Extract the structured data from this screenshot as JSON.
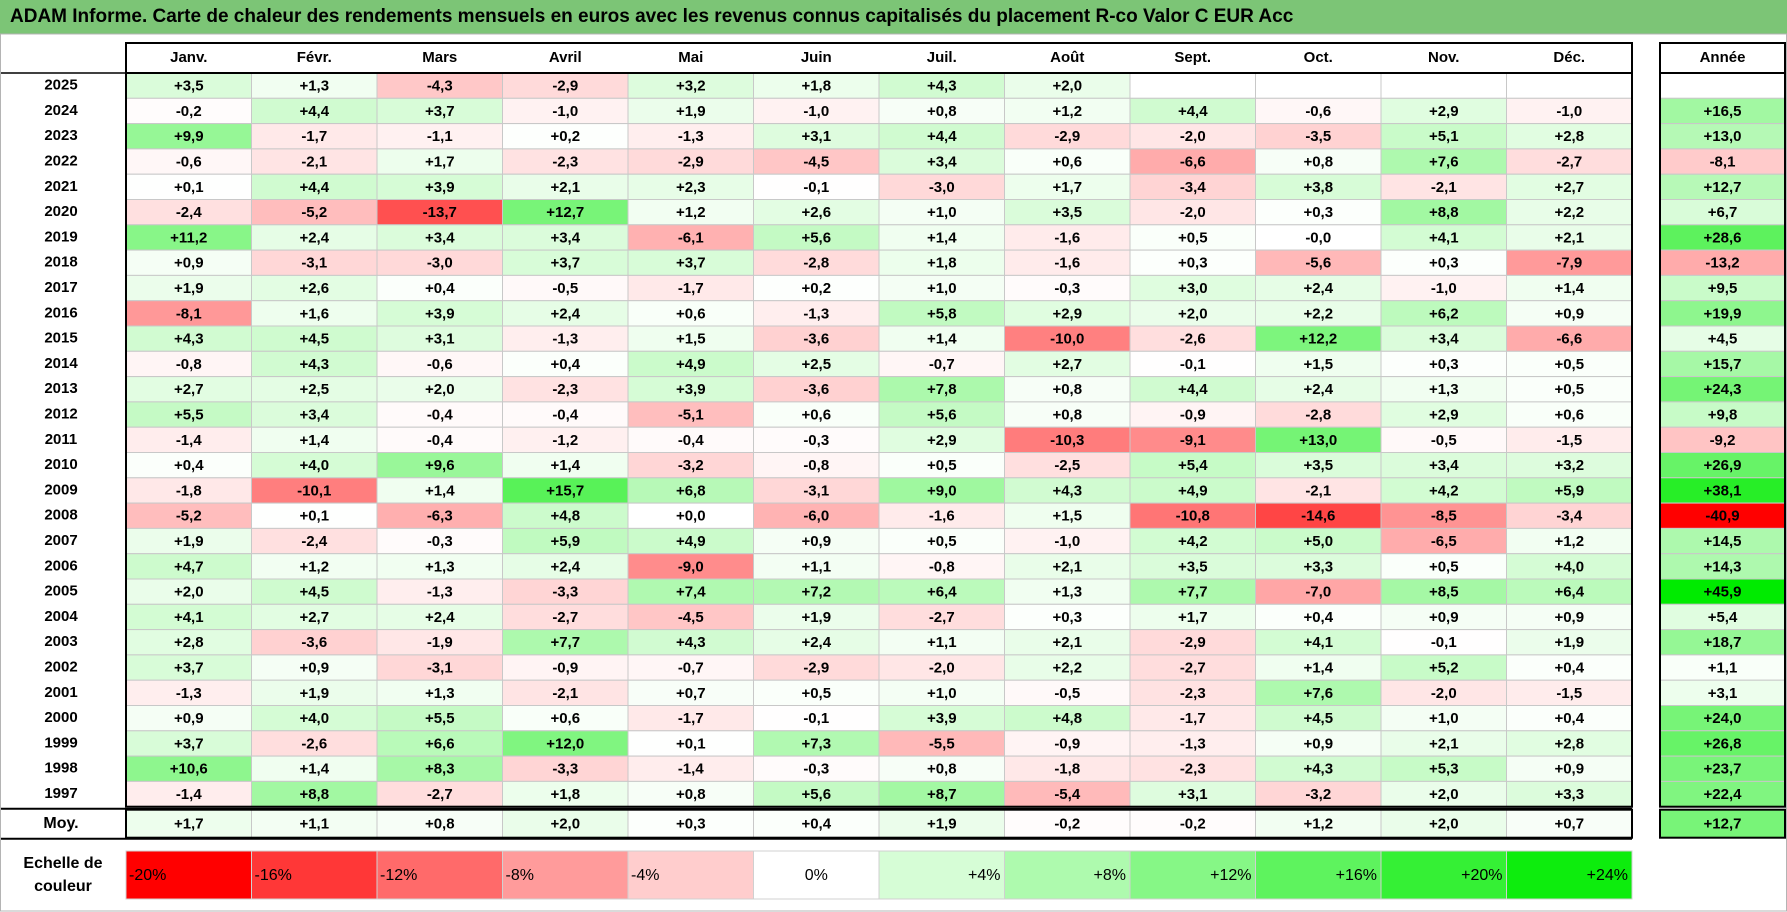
{
  "title": "ADAM Informe. Carte de chaleur des rendements mensuels en euros avec les revenus connus capitalisés du placement R-co Valor C EUR Acc",
  "chart_data": {
    "type": "heatmap",
    "title": "ADAM Informe. Carte de chaleur des rendements mensuels en euros avec les revenus connus capitalisés du placement R-co Valor C EUR Acc",
    "months": [
      "Janv.",
      "Févr.",
      "Mars",
      "Avril",
      "Mai",
      "Juin",
      "Juil.",
      "Août",
      "Sept.",
      "Oct.",
      "Nov.",
      "Déc."
    ],
    "year_header": "Année",
    "rows": [
      {
        "year": "2025",
        "values": [
          "+3,5",
          "+1,3",
          "-4,3",
          "-2,9",
          "+3,2",
          "+1,8",
          "+4,3",
          "+2,0",
          "",
          "",
          "",
          ""
        ],
        "annual": ""
      },
      {
        "year": "2024",
        "values": [
          "-0,2",
          "+4,4",
          "+3,7",
          "-1,0",
          "+1,9",
          "-1,0",
          "+0,8",
          "+1,2",
          "+4,4",
          "-0,6",
          "+2,9",
          "-1,0"
        ],
        "annual": "+16,5"
      },
      {
        "year": "2023",
        "values": [
          "+9,9",
          "-1,7",
          "-1,1",
          "+0,2",
          "-1,3",
          "+3,1",
          "+4,4",
          "-2,9",
          "-2,0",
          "-3,5",
          "+5,1",
          "+2,8"
        ],
        "annual": "+13,0"
      },
      {
        "year": "2022",
        "values": [
          "-0,6",
          "-2,1",
          "+1,7",
          "-2,3",
          "-2,9",
          "-4,5",
          "+3,4",
          "+0,6",
          "-6,6",
          "+0,8",
          "+7,6",
          "-2,7"
        ],
        "annual": "-8,1"
      },
      {
        "year": "2021",
        "values": [
          "+0,1",
          "+4,4",
          "+3,9",
          "+2,1",
          "+2,3",
          "-0,1",
          "-3,0",
          "+1,7",
          "-3,4",
          "+3,8",
          "-2,1",
          "+2,7"
        ],
        "annual": "+12,7"
      },
      {
        "year": "2020",
        "values": [
          "-2,4",
          "-5,2",
          "-13,7",
          "+12,7",
          "+1,2",
          "+2,6",
          "+1,0",
          "+3,5",
          "-2,0",
          "+0,3",
          "+8,8",
          "+2,2"
        ],
        "annual": "+6,7"
      },
      {
        "year": "2019",
        "values": [
          "+11,2",
          "+2,4",
          "+3,4",
          "+3,4",
          "-6,1",
          "+5,6",
          "+1,4",
          "-1,6",
          "+0,5",
          "-0,0",
          "+4,1",
          "+2,1"
        ],
        "annual": "+28,6"
      },
      {
        "year": "2018",
        "values": [
          "+0,9",
          "-3,1",
          "-3,0",
          "+3,7",
          "+3,7",
          "-2,8",
          "+1,8",
          "-1,6",
          "+0,3",
          "-5,6",
          "+0,3",
          "-7,9"
        ],
        "annual": "-13,2"
      },
      {
        "year": "2017",
        "values": [
          "+1,9",
          "+2,6",
          "+0,4",
          "-0,5",
          "-1,7",
          "+0,2",
          "+1,0",
          "-0,3",
          "+3,0",
          "+2,4",
          "-1,0",
          "+1,4"
        ],
        "annual": "+9,5"
      },
      {
        "year": "2016",
        "values": [
          "-8,1",
          "+1,6",
          "+3,9",
          "+2,4",
          "+0,6",
          "-1,3",
          "+5,8",
          "+2,9",
          "+2,0",
          "+2,2",
          "+6,2",
          "+0,9"
        ],
        "annual": "+19,9"
      },
      {
        "year": "2015",
        "values": [
          "+4,3",
          "+4,5",
          "+3,1",
          "-1,3",
          "+1,5",
          "-3,6",
          "+1,4",
          "-10,0",
          "-2,6",
          "+12,2",
          "+3,4",
          "-6,6"
        ],
        "annual": "+4,5"
      },
      {
        "year": "2014",
        "values": [
          "-0,8",
          "+4,3",
          "-0,6",
          "+0,4",
          "+4,9",
          "+2,5",
          "-0,7",
          "+2,7",
          "-0,1",
          "+1,5",
          "+0,3",
          "+0,5"
        ],
        "annual": "+15,7"
      },
      {
        "year": "2013",
        "values": [
          "+2,7",
          "+2,5",
          "+2,0",
          "-2,3",
          "+3,9",
          "-3,6",
          "+7,8",
          "+0,8",
          "+4,4",
          "+2,4",
          "+1,3",
          "+0,5"
        ],
        "annual": "+24,3"
      },
      {
        "year": "2012",
        "values": [
          "+5,5",
          "+3,4",
          "-0,4",
          "-0,4",
          "-5,1",
          "+0,6",
          "+5,6",
          "+0,8",
          "-0,9",
          "-2,8",
          "+2,9",
          "+0,6"
        ],
        "annual": "+9,8"
      },
      {
        "year": "2011",
        "values": [
          "-1,4",
          "+1,4",
          "-0,4",
          "-1,2",
          "-0,4",
          "-0,3",
          "+2,9",
          "-10,3",
          "-9,1",
          "+13,0",
          "-0,5",
          "-1,5"
        ],
        "annual": "-9,2"
      },
      {
        "year": "2010",
        "values": [
          "+0,4",
          "+4,0",
          "+9,6",
          "+1,4",
          "-3,2",
          "-0,8",
          "+0,5",
          "-2,5",
          "+5,4",
          "+3,5",
          "+3,4",
          "+3,2"
        ],
        "annual": "+26,9"
      },
      {
        "year": "2009",
        "values": [
          "-1,8",
          "-10,1",
          "+1,4",
          "+15,7",
          "+6,8",
          "-3,1",
          "+9,0",
          "+4,3",
          "+4,9",
          "-2,1",
          "+4,2",
          "+5,9"
        ],
        "annual": "+38,1"
      },
      {
        "year": "2008",
        "values": [
          "-5,2",
          "+0,1",
          "-6,3",
          "+4,8",
          "+0,0",
          "-6,0",
          "-1,6",
          "+1,5",
          "-10,8",
          "-14,6",
          "-8,5",
          "-3,4"
        ],
        "annual": "-40,9"
      },
      {
        "year": "2007",
        "values": [
          "+1,9",
          "-2,4",
          "-0,3",
          "+5,9",
          "+4,9",
          "+0,9",
          "+0,5",
          "-1,0",
          "+4,2",
          "+5,0",
          "-6,5",
          "+1,2"
        ],
        "annual": "+14,5"
      },
      {
        "year": "2006",
        "values": [
          "+4,7",
          "+1,2",
          "+1,3",
          "+2,4",
          "-9,0",
          "+1,1",
          "-0,8",
          "+2,1",
          "+3,5",
          "+3,3",
          "+0,5",
          "+4,0"
        ],
        "annual": "+14,3"
      },
      {
        "year": "2005",
        "values": [
          "+2,0",
          "+4,5",
          "-1,3",
          "-3,3",
          "+7,4",
          "+7,2",
          "+6,4",
          "+1,3",
          "+7,7",
          "-7,0",
          "+8,5",
          "+6,4"
        ],
        "annual": "+45,9"
      },
      {
        "year": "2004",
        "values": [
          "+4,1",
          "+2,7",
          "+2,4",
          "-2,7",
          "-4,5",
          "+1,9",
          "-2,7",
          "+0,3",
          "+1,7",
          "+0,4",
          "+0,9",
          "+0,9"
        ],
        "annual": "+5,4"
      },
      {
        "year": "2003",
        "values": [
          "+2,8",
          "-3,6",
          "-1,9",
          "+7,7",
          "+4,3",
          "+2,4",
          "+1,1",
          "+2,1",
          "-2,9",
          "+4,1",
          "-0,1",
          "+1,9"
        ],
        "annual": "+18,7"
      },
      {
        "year": "2002",
        "values": [
          "+3,7",
          "+0,9",
          "-3,1",
          "-0,9",
          "-0,7",
          "-2,9",
          "-2,0",
          "+2,2",
          "-2,7",
          "+1,4",
          "+5,2",
          "+0,4"
        ],
        "annual": "+1,1"
      },
      {
        "year": "2001",
        "values": [
          "-1,3",
          "+1,9",
          "+1,3",
          "-2,1",
          "+0,7",
          "+0,5",
          "+1,0",
          "-0,5",
          "-2,3",
          "+7,6",
          "-2,0",
          "-1,5"
        ],
        "annual": "+3,1"
      },
      {
        "year": "2000",
        "values": [
          "+0,9",
          "+4,0",
          "+5,5",
          "+0,6",
          "-1,7",
          "-0,1",
          "+3,9",
          "+4,8",
          "-1,7",
          "+4,5",
          "+1,0",
          "+0,4"
        ],
        "annual": "+24,0"
      },
      {
        "year": "1999",
        "values": [
          "+3,7",
          "-2,6",
          "+6,6",
          "+12,0",
          "+0,1",
          "+7,3",
          "-5,5",
          "-0,9",
          "-1,3",
          "+0,9",
          "+2,1",
          "+2,8"
        ],
        "annual": "+26,8"
      },
      {
        "year": "1998",
        "values": [
          "+10,6",
          "+1,4",
          "+8,3",
          "-3,3",
          "-1,4",
          "-0,3",
          "+0,8",
          "-1,8",
          "-2,3",
          "+4,3",
          "+5,3",
          "+0,9"
        ],
        "annual": "+23,7"
      },
      {
        "year": "1997",
        "values": [
          "-1,4",
          "+8,8",
          "-2,7",
          "+1,8",
          "+0,8",
          "+5,6",
          "+8,7",
          "-5,4",
          "+3,1",
          "-3,2",
          "+2,0",
          "+3,3"
        ],
        "annual": "+22,4"
      }
    ],
    "average": {
      "label": "Moy.",
      "values": [
        "+1,7",
        "+1,1",
        "+0,8",
        "+2,0",
        "+0,3",
        "+0,4",
        "+1,9",
        "-0,2",
        "-0,2",
        "+1,2",
        "+2,0",
        "+0,7"
      ],
      "annual": "+12,7"
    },
    "color_scale": {
      "label_line1": "Echelle de",
      "label_line2": "couleur",
      "stops": [
        {
          "label": "-20%",
          "value": -20,
          "color": "#ff0000"
        },
        {
          "label": "-16%",
          "value": -16,
          "color": "#ff3737"
        },
        {
          "label": "-12%",
          "value": -12,
          "color": "#ff6a6a"
        },
        {
          "label": "-8%",
          "value": -8,
          "color": "#ff9b9b"
        },
        {
          "label": "-4%",
          "value": -4,
          "color": "#ffcdcd"
        },
        {
          "label": "0%",
          "value": 0,
          "color": "#ffffff"
        },
        {
          "label": "+4%",
          "value": 4,
          "color": "#d6fdd6"
        },
        {
          "label": "+8%",
          "value": 8,
          "color": "#aefaae"
        },
        {
          "label": "+12%",
          "value": 12,
          "color": "#86f786"
        },
        {
          "label": "+16%",
          "value": 16,
          "color": "#5ef35e"
        },
        {
          "label": "+20%",
          "value": 20,
          "color": "#35f035"
        },
        {
          "label": "+24%",
          "value": 24,
          "color": "#0ded0d"
        }
      ]
    },
    "colors": {
      "title_bar": "#7cc576",
      "negative_max": "#ff0000",
      "positive_max": "#00e600",
      "border": "#000000",
      "gridline": "#b4b4b4"
    }
  }
}
